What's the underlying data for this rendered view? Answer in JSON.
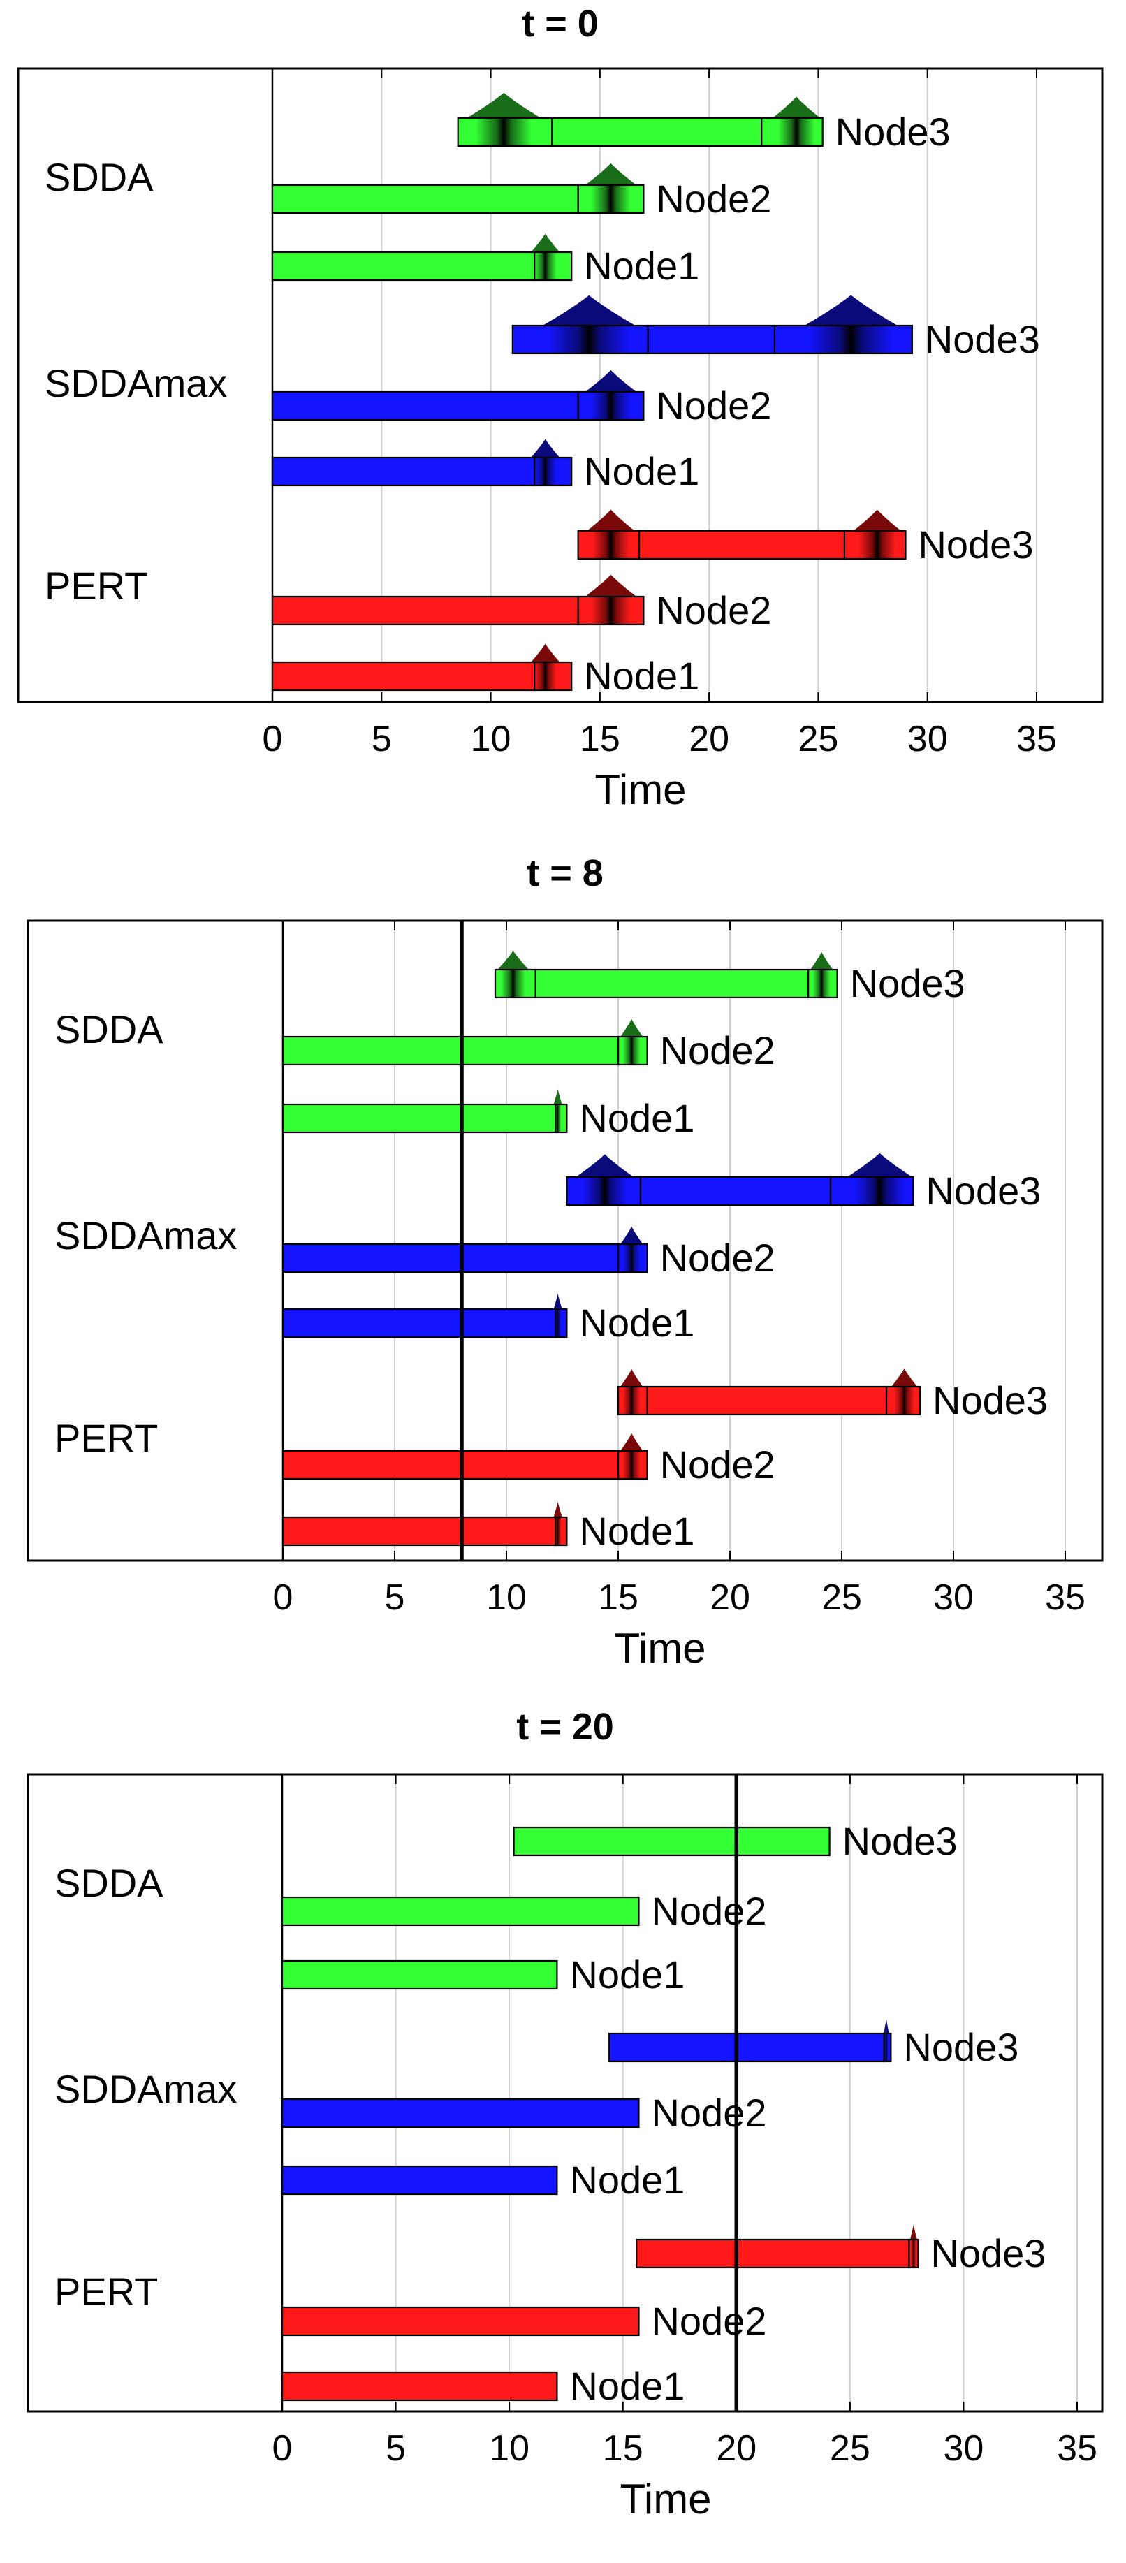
{
  "chart_data": [
    {
      "type": "gantt",
      "title": "t = 0",
      "xlabel": "Time",
      "xlim": [
        0,
        38
      ],
      "xticks": [
        0,
        5,
        10,
        15,
        20,
        25,
        30,
        35
      ],
      "grid": true,
      "current_time": null,
      "groups": [
        {
          "name": "SDDA",
          "color": "#33ff33",
          "shade": "#1a6e1a",
          "tasks": [
            {
              "name": "Node3",
              "start": 12.8,
              "end": 22.4,
              "start_unc": [
                8.5,
                12.8
              ],
              "end_unc": [
                22.4,
                25.2
              ],
              "start_peak": 10.6,
              "end_peak": 24.0
            },
            {
              "name": "Node2",
              "start": 0,
              "end": 14.0,
              "start_unc": null,
              "end_unc": [
                14.0,
                17.0
              ],
              "start_peak": null,
              "end_peak": 15.5
            },
            {
              "name": "Node1",
              "start": 0,
              "end": 12.0,
              "start_unc": null,
              "end_unc": [
                12.0,
                13.7
              ],
              "start_peak": null,
              "end_peak": 12.5
            }
          ]
        },
        {
          "name": "SDDAmax",
          "color": "#1414ff",
          "shade": "#0a0a7a",
          "tasks": [
            {
              "name": "Node3",
              "start": 17.2,
              "end": 23.0,
              "start_unc": [
                11.0,
                17.2
              ],
              "end_unc": [
                23.0,
                29.3
              ],
              "start_peak": 14.5,
              "end_peak": 26.5
            },
            {
              "name": "Node2",
              "start": 0,
              "end": 14.0,
              "start_unc": null,
              "end_unc": [
                14.0,
                17.0
              ],
              "start_peak": null,
              "end_peak": 15.5
            },
            {
              "name": "Node1",
              "start": 0,
              "end": 12.0,
              "start_unc": null,
              "end_unc": [
                12.0,
                13.7
              ],
              "start_peak": null,
              "end_peak": 12.5
            }
          ]
        },
        {
          "name": "PERT",
          "color": "#ff1a1a",
          "shade": "#7a0a0a",
          "tasks": [
            {
              "name": "Node3",
              "start": 16.8,
              "end": 26.2,
              "start_unc": [
                14.0,
                16.8
              ],
              "end_unc": [
                26.2,
                29.0
              ],
              "start_peak": 15.5,
              "end_peak": 27.7
            },
            {
              "name": "Node2",
              "start": 0,
              "end": 14.0,
              "start_unc": null,
              "end_unc": [
                14.0,
                17.0
              ],
              "start_peak": null,
              "end_peak": 15.5
            },
            {
              "name": "Node1",
              "start": 0,
              "end": 12.0,
              "start_unc": null,
              "end_unc": [
                12.0,
                13.7
              ],
              "start_peak": null,
              "end_peak": 12.5
            }
          ]
        }
      ]
    },
    {
      "type": "gantt",
      "title": "t = 8",
      "xlabel": "Time",
      "xlim": [
        0,
        38
      ],
      "xticks": [
        0,
        5,
        10,
        15,
        20,
        25,
        30,
        35
      ],
      "grid": true,
      "current_time": 8,
      "groups": [
        {
          "name": "SDDA",
          "color": "#33ff33",
          "shade": "#1a6e1a",
          "tasks": [
            {
              "name": "Node3",
              "start": 11.3,
              "end": 23.5,
              "start_unc": [
                9.5,
                11.3
              ],
              "end_unc": [
                23.5,
                24.8
              ],
              "start_peak": 10.3,
              "end_peak": 24.1
            },
            {
              "name": "Node2",
              "start": 0,
              "end": 15.0,
              "start_unc": null,
              "end_unc": [
                15.0,
                16.3
              ],
              "start_peak": null,
              "end_peak": 15.6
            },
            {
              "name": "Node1",
              "start": 0,
              "end": 12.2,
              "start_unc": null,
              "end_unc": [
                12.2,
                12.7
              ],
              "start_peak": null,
              "end_peak": 12.3
            }
          ]
        },
        {
          "name": "SDDAmax",
          "color": "#1414ff",
          "shade": "#0a0a7a",
          "tasks": [
            {
              "name": "Node3",
              "start": 16.0,
              "end": 24.5,
              "start_unc": [
                12.7,
                16.0
              ],
              "end_unc": [
                24.5,
                28.2
              ],
              "start_peak": 14.4,
              "end_peak": 26.7
            },
            {
              "name": "Node2",
              "start": 0,
              "end": 15.0,
              "start_unc": null,
              "end_unc": [
                15.0,
                16.3
              ],
              "start_peak": null,
              "end_peak": 15.6
            },
            {
              "name": "Node1",
              "start": 0,
              "end": 12.2,
              "start_unc": null,
              "end_unc": [
                12.2,
                12.7
              ],
              "start_peak": null,
              "end_peak": 12.3
            }
          ]
        },
        {
          "name": "PERT",
          "color": "#ff1a1a",
          "shade": "#7a0a0a",
          "tasks": [
            {
              "name": "Node3",
              "start": 16.3,
              "end": 27.0,
              "start_unc": [
                15.0,
                16.3
              ],
              "end_unc": [
                27.0,
                28.5
              ],
              "start_peak": 15.6,
              "end_peak": 27.8
            },
            {
              "name": "Node2",
              "start": 0,
              "end": 15.0,
              "start_unc": null,
              "end_unc": [
                15.0,
                16.3
              ],
              "start_peak": null,
              "end_peak": 15.6
            },
            {
              "name": "Node1",
              "start": 0,
              "end": 12.2,
              "start_unc": null,
              "end_unc": [
                12.2,
                12.7
              ],
              "start_peak": null,
              "end_peak": 12.3
            }
          ]
        }
      ]
    },
    {
      "type": "gantt",
      "title": "t = 20",
      "xlabel": "Time",
      "xlim": [
        0,
        38
      ],
      "xticks": [
        0,
        5,
        10,
        15,
        20,
        25,
        30,
        35
      ],
      "grid": true,
      "current_time": 20,
      "groups": [
        {
          "name": "SDDA",
          "color": "#33ff33",
          "shade": "#1a6e1a",
          "tasks": [
            {
              "name": "Node3",
              "start": 10.2,
              "end": 24.1,
              "start_unc": null,
              "end_unc": null,
              "start_peak": null,
              "end_peak": null
            },
            {
              "name": "Node2",
              "start": 0,
              "end": 15.7,
              "start_unc": null,
              "end_unc": null,
              "start_peak": null,
              "end_peak": null
            },
            {
              "name": "Node1",
              "start": 0,
              "end": 12.1,
              "start_unc": null,
              "end_unc": null,
              "start_peak": null,
              "end_peak": null
            }
          ]
        },
        {
          "name": "SDDAmax",
          "color": "#1414ff",
          "shade": "#0a0a7a",
          "tasks": [
            {
              "name": "Node3",
              "start": 14.4,
              "end": 26.5,
              "start_unc": null,
              "end_unc": [
                26.5,
                26.8
              ],
              "start_peak": null,
              "end_peak": 26.6
            },
            {
              "name": "Node2",
              "start": 0,
              "end": 15.7,
              "start_unc": null,
              "end_unc": null,
              "start_peak": null,
              "end_peak": null
            },
            {
              "name": "Node1",
              "start": 0,
              "end": 12.1,
              "start_unc": null,
              "end_unc": null,
              "start_peak": null,
              "end_peak": null
            }
          ]
        },
        {
          "name": "PERT",
          "color": "#ff1a1a",
          "shade": "#7a0a0a",
          "tasks": [
            {
              "name": "Node3",
              "start": 15.6,
              "end": 27.6,
              "start_unc": null,
              "end_unc": [
                27.6,
                28.0
              ],
              "start_peak": null,
              "end_peak": 27.8
            },
            {
              "name": "Node2",
              "start": 0,
              "end": 15.7,
              "start_unc": null,
              "end_unc": null,
              "start_peak": null,
              "end_peak": null
            },
            {
              "name": "Node1",
              "start": 0,
              "end": 12.1,
              "start_unc": null,
              "end_unc": null,
              "start_peak": null,
              "end_peak": null
            }
          ]
        }
      ]
    }
  ]
}
